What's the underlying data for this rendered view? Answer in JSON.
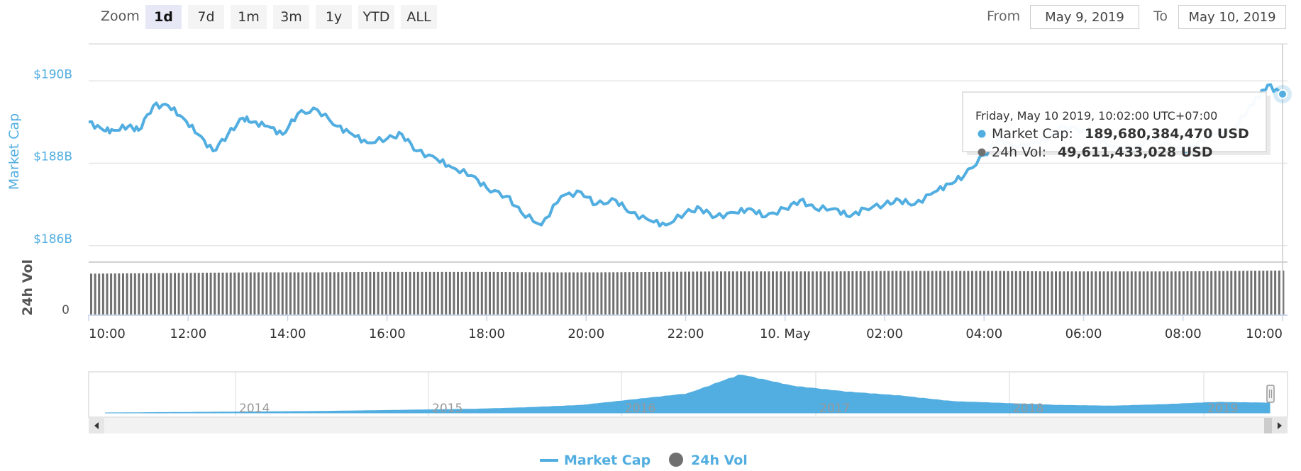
{
  "toolbar": {
    "zoom_label": "Zoom",
    "zoom_buttons": [
      "1d",
      "7d",
      "1m",
      "3m",
      "1y",
      "YTD",
      "ALL"
    ],
    "active_zoom": "1d",
    "from_label": "From",
    "from_value": "May 9, 2019",
    "to_label": "To",
    "to_value": "May 10, 2019"
  },
  "colors": {
    "market_cap": "#52aee0",
    "volume": "#707070",
    "navigator_fill": "#52aee0",
    "grid": "#e6e6e6",
    "axis_text": "#52aee0"
  },
  "tooltip": {
    "header": "Friday, May 10 2019, 10:02:00 UTC+07:00",
    "market_cap_label": "Market Cap:",
    "market_cap_value": "189,680,384,470 USD",
    "volume_label": "24h Vol:",
    "volume_value": "49,611,433,028 USD"
  },
  "legend": {
    "market_cap": "Market Cap",
    "volume": "24h Vol"
  },
  "chart_data": {
    "type": "line",
    "title": "",
    "y_axis_label": "Market Cap",
    "y_ticks": [
      "$186B",
      "$188B",
      "$190B"
    ],
    "ylim": [
      186,
      190.5
    ],
    "y_unit": "billion USD",
    "volume_axis_label": "24h Vol",
    "volume_ticks": [
      "0"
    ],
    "x_tick_labels": [
      "10:00",
      "12:00",
      "14:00",
      "16:00",
      "18:00",
      "20:00",
      "22:00",
      "10. May",
      "02:00",
      "04:00",
      "06:00",
      "08:00",
      "10:00"
    ],
    "x_hours_range": [
      0,
      24
    ],
    "series": [
      {
        "name": "Market Cap",
        "x_hours": [
          0,
          0.3,
          0.5,
          0.8,
          1.0,
          1.3,
          1.6,
          1.9,
          2.2,
          2.5,
          2.8,
          3.1,
          3.3,
          3.6,
          3.9,
          4.2,
          4.6,
          5.0,
          5.3,
          5.6,
          6.0,
          6.3,
          6.6,
          7.0,
          7.3,
          7.7,
          8.0,
          8.4,
          8.7,
          9.1,
          9.5,
          9.9,
          10.2,
          10.6,
          10.9,
          11.3,
          11.6,
          12.0,
          12.3,
          12.6,
          13.0,
          13.3,
          13.6,
          14.0,
          14.3,
          14.6,
          15.0,
          15.3,
          15.6,
          16.0,
          16.3,
          16.6,
          17.0,
          17.3,
          17.6,
          18.0,
          18.3,
          18.6,
          19.0,
          19.3,
          19.6,
          20.0,
          20.3,
          20.6,
          21.0,
          21.3,
          21.6,
          22.0,
          22.3,
          22.6,
          23.0,
          23.3,
          23.5,
          23.7,
          24.0
        ],
        "values": [
          189.0,
          188.8,
          188.8,
          188.9,
          188.8,
          189.4,
          189.4,
          189.1,
          188.7,
          188.3,
          188.7,
          189.1,
          189.0,
          188.9,
          188.7,
          189.2,
          189.3,
          188.9,
          188.7,
          188.5,
          188.6,
          188.7,
          188.3,
          188.1,
          187.9,
          187.7,
          187.4,
          187.2,
          186.8,
          186.5,
          187.2,
          187.3,
          187.0,
          187.1,
          186.8,
          186.6,
          186.5,
          186.8,
          186.9,
          186.7,
          186.8,
          186.9,
          186.7,
          186.9,
          187.1,
          186.9,
          186.9,
          186.7,
          186.9,
          187.0,
          187.1,
          187.0,
          187.3,
          187.5,
          187.7,
          188.2,
          188.6,
          188.4,
          188.5,
          188.6,
          188.9,
          188.8,
          188.6,
          188.4,
          188.3,
          188.6,
          188.5,
          188.3,
          188.5,
          188.7,
          188.8,
          189.3,
          189.6,
          189.9,
          189.68
        ]
      },
      {
        "name": "24h Vol",
        "type": "bar",
        "note_units": "relative",
        "value_billion_usd_last": 49.61,
        "values_relative": [
          0.93,
          0.94,
          0.95,
          0.96,
          0.96,
          0.97,
          0.97,
          0.97,
          0.96,
          0.96,
          0.97,
          0.98,
          0.98,
          0.98,
          0.99,
          0.99,
          0.99,
          0.98,
          0.98,
          0.98,
          0.99,
          1.0
        ]
      }
    ],
    "highlighted_point": {
      "x_hours": 24,
      "value": 189.68
    },
    "navigator": {
      "x_tick_labels": [
        "2014",
        "2015",
        "2016",
        "2017",
        "2018",
        "2019"
      ],
      "shape_relative": [
        0.0,
        0.01,
        0.02,
        0.03,
        0.04,
        0.06,
        0.08,
        0.1,
        0.14,
        0.2,
        0.35,
        0.5,
        1.0,
        0.7,
        0.55,
        0.45,
        0.3,
        0.25,
        0.2,
        0.18,
        0.22,
        0.28,
        0.26
      ]
    }
  }
}
